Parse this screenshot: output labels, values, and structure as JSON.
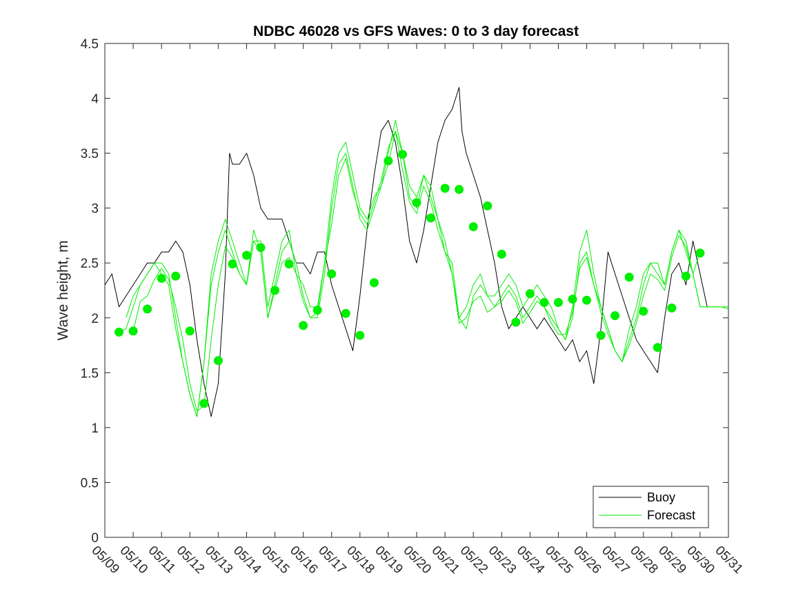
{
  "chart_data": {
    "type": "line",
    "title": "NDBC 46028 vs GFS Waves: 0 to 3 day forecast",
    "xlabel": "",
    "ylabel": "Wave height, m",
    "ylim": [
      0,
      4.5
    ],
    "yticks": [
      "0",
      "0.5",
      "1",
      "1.5",
      "2",
      "2.5",
      "3",
      "3.5",
      "4",
      "4.5"
    ],
    "xlim": [
      9,
      31
    ],
    "xticks": [
      "05/09",
      "05/10",
      "05/11",
      "05/12",
      "05/13",
      "05/14",
      "05/15",
      "05/16",
      "05/17",
      "05/18",
      "05/19",
      "05/20",
      "05/21",
      "05/22",
      "05/23",
      "05/24",
      "05/25",
      "05/26",
      "05/27",
      "05/28",
      "05/29",
      "05/30",
      "05/31"
    ],
    "grid": false,
    "legend_position": "bottom-right",
    "colors": {
      "buoy": "#000000",
      "forecast": "#00ee00"
    },
    "legend": [
      {
        "label": "Buoy",
        "color": "#000000"
      },
      {
        "label": "Forecast",
        "color": "#00ee00"
      }
    ],
    "series": [
      {
        "name": "Buoy",
        "x": [
          9.0,
          9.25,
          9.5,
          9.75,
          10.0,
          10.25,
          10.5,
          10.75,
          11.0,
          11.25,
          11.5,
          11.75,
          12.0,
          12.25,
          12.5,
          12.75,
          13.0,
          13.25,
          13.4,
          13.5,
          13.75,
          14.0,
          14.25,
          14.5,
          14.75,
          15.0,
          15.25,
          15.5,
          15.75,
          16.0,
          16.25,
          16.5,
          16.75,
          17.0,
          17.25,
          17.5,
          17.75,
          18.0,
          18.25,
          18.5,
          18.75,
          19.0,
          19.25,
          19.5,
          19.75,
          20.0,
          20.25,
          20.5,
          20.75,
          21.0,
          21.25,
          21.5,
          21.6,
          21.75,
          22.0,
          22.25,
          22.5,
          22.75,
          23.0,
          23.25,
          23.5,
          23.75,
          24.0,
          24.25,
          24.5,
          24.75,
          25.0,
          25.25,
          25.5,
          25.75,
          26.0,
          26.25,
          26.5,
          26.75,
          27.0,
          27.25,
          27.5,
          27.75,
          28.0,
          28.25,
          28.5,
          28.75,
          29.0,
          29.25,
          29.5,
          29.75,
          30.0,
          30.25
        ],
        "values": [
          2.3,
          2.4,
          2.1,
          2.2,
          2.3,
          2.4,
          2.5,
          2.5,
          2.6,
          2.6,
          2.7,
          2.6,
          2.3,
          1.8,
          1.4,
          1.1,
          1.4,
          2.4,
          3.5,
          3.4,
          3.4,
          3.5,
          3.3,
          3.0,
          2.9,
          2.9,
          2.9,
          2.7,
          2.5,
          2.5,
          2.4,
          2.6,
          2.6,
          2.3,
          2.1,
          1.9,
          1.7,
          2.2,
          2.8,
          3.3,
          3.7,
          3.8,
          3.6,
          3.2,
          2.7,
          2.5,
          2.8,
          3.2,
          3.6,
          3.8,
          3.9,
          4.1,
          3.7,
          3.5,
          3.3,
          3.1,
          2.8,
          2.5,
          2.1,
          1.9,
          2.0,
          2.1,
          2.0,
          1.9,
          2.0,
          1.9,
          1.8,
          1.7,
          1.8,
          1.6,
          1.7,
          1.4,
          1.9,
          2.6,
          2.4,
          2.2,
          2.0,
          1.8,
          1.7,
          1.6,
          1.5,
          2.0,
          2.4,
          2.5,
          2.3,
          2.7,
          2.4,
          2.1
        ]
      },
      {
        "name": "Forecast",
        "x": [
          9.75,
          10.0,
          10.25,
          10.5,
          10.75,
          11.0,
          11.25,
          11.5,
          11.75,
          12.0,
          12.25,
          12.5,
          12.75,
          13.0,
          13.25,
          13.5,
          13.75,
          14.0,
          14.25,
          14.5,
          14.75,
          15.0,
          15.25,
          15.5,
          15.75,
          16.0,
          16.25,
          16.5,
          16.75,
          17.0,
          17.25,
          17.5,
          17.75,
          18.0,
          18.25,
          18.5,
          18.75,
          19.0,
          19.25,
          19.5,
          19.75,
          20.0,
          20.25,
          20.5,
          20.75,
          21.0,
          21.25,
          21.5,
          21.75,
          22.0,
          22.25,
          22.5,
          22.75,
          23.0,
          23.25,
          23.5,
          23.75,
          24.0,
          24.25,
          24.5,
          24.75,
          25.0,
          25.25,
          25.5,
          25.75,
          26.0,
          26.25,
          26.5,
          26.75,
          27.0,
          27.25,
          27.5,
          27.75,
          28.0,
          28.25,
          28.5,
          28.75,
          29.0,
          29.25,
          29.5,
          29.75,
          30.0,
          30.25,
          30.5,
          30.75,
          31.0
        ],
        "values": [
          2.0,
          2.2,
          2.3,
          2.4,
          2.5,
          2.4,
          2.3,
          1.9,
          1.6,
          1.3,
          1.1,
          1.6,
          2.3,
          2.6,
          2.8,
          2.6,
          2.4,
          2.3,
          2.7,
          2.6,
          2.0,
          2.3,
          2.6,
          2.7,
          2.5,
          2.2,
          2.0,
          2.0,
          2.4,
          3.0,
          3.4,
          3.5,
          3.2,
          2.9,
          2.8,
          3.0,
          3.2,
          3.4,
          3.7,
          3.5,
          3.1,
          3.0,
          3.3,
          3.1,
          2.9,
          2.7,
          2.4,
          2.0,
          1.9,
          2.2,
          2.3,
          2.2,
          2.1,
          2.2,
          2.3,
          2.2,
          2.0,
          2.1,
          2.2,
          2.1,
          2.0,
          1.9,
          1.8,
          2.0,
          2.5,
          2.6,
          2.3,
          2.1,
          1.9,
          1.7,
          1.6,
          1.8,
          2.0,
          2.3,
          2.5,
          2.4,
          2.3,
          2.6,
          2.8,
          2.7,
          2.4,
          2.1,
          2.1,
          2.1,
          2.1,
          2.1
        ]
      },
      {
        "name": "Forecast",
        "x": [
          9.5,
          9.75,
          10.0,
          10.25,
          10.5,
          10.75,
          11.0,
          11.25,
          11.5,
          11.75,
          12.0,
          12.25,
          12.5,
          12.75,
          13.0,
          13.25,
          13.5,
          13.75,
          14.0,
          14.25,
          14.5,
          14.75,
          15.0,
          15.25,
          15.5,
          15.75,
          16.0,
          16.25,
          16.5,
          16.75,
          17.0,
          17.25,
          17.5,
          17.75,
          18.0,
          18.25,
          18.5,
          18.75,
          19.0,
          19.25,
          19.5,
          19.75,
          20.0,
          20.25,
          20.5,
          20.75,
          21.0,
          21.25,
          21.5,
          21.75,
          22.0,
          22.25,
          22.5,
          22.75,
          23.0,
          23.25,
          23.5,
          23.75,
          24.0,
          24.25,
          24.5,
          24.75,
          25.0,
          25.25,
          25.5,
          25.75,
          26.0,
          26.25,
          26.5,
          26.75,
          27.0,
          27.25,
          27.5,
          27.75,
          28.0,
          28.25,
          28.5,
          28.75,
          29.0,
          29.25,
          29.5,
          29.75,
          30.0,
          30.25,
          30.5,
          30.75,
          31.0
        ],
        "values": [
          1.87,
          1.9,
          2.1,
          2.3,
          2.4,
          2.5,
          2.5,
          2.4,
          2.0,
          1.6,
          1.3,
          1.1,
          1.6,
          2.4,
          2.7,
          2.9,
          2.7,
          2.5,
          2.3,
          2.7,
          2.7,
          2.1,
          2.4,
          2.7,
          2.8,
          2.4,
          2.3,
          2.1,
          2.1,
          2.5,
          3.1,
          3.5,
          3.6,
          3.3,
          3.0,
          2.9,
          3.1,
          3.2,
          3.5,
          3.8,
          3.5,
          3.2,
          3.1,
          3.3,
          3.2,
          2.9,
          2.6,
          2.5,
          2.0,
          2.1,
          2.3,
          2.4,
          2.2,
          2.2,
          2.3,
          2.4,
          2.3,
          2.1,
          2.2,
          2.3,
          2.2,
          2.1,
          1.9,
          1.8,
          2.1,
          2.6,
          2.8,
          2.4,
          2.1,
          1.9,
          1.7,
          1.6,
          1.9,
          2.1,
          2.4,
          2.5,
          2.5,
          2.3,
          2.6,
          2.8,
          2.6,
          2.4,
          2.1,
          2.1,
          2.1,
          2.1,
          2.08
        ]
      },
      {
        "name": "Forecast",
        "x": [
          10.0,
          10.25,
          10.5,
          10.75,
          11.0,
          11.25,
          11.5,
          11.75,
          12.0,
          12.25,
          12.5,
          12.75,
          13.0,
          13.25,
          13.5,
          13.75,
          14.0,
          14.25,
          14.5,
          14.75,
          15.0,
          15.25,
          15.5,
          15.75,
          16.0,
          16.25,
          16.5,
          16.75,
          17.0,
          17.25,
          17.5,
          17.75,
          18.0,
          18.25,
          18.5,
          18.75,
          19.0,
          19.25,
          19.5,
          19.75,
          20.0,
          20.25,
          20.5,
          20.75,
          21.0,
          21.25,
          21.5,
          21.75,
          22.0,
          22.25,
          22.5,
          22.75,
          23.0,
          23.25,
          23.5,
          23.75,
          24.0,
          24.25,
          24.5,
          24.75,
          25.0,
          25.25,
          25.5,
          25.75,
          26.0,
          26.25,
          26.5,
          26.75,
          27.0,
          27.25,
          27.5,
          27.75,
          28.0,
          28.25,
          28.5,
          28.75,
          29.0,
          29.25,
          29.5,
          29.75,
          30.0
        ],
        "values": [
          1.88,
          2.15,
          2.2,
          2.35,
          2.45,
          2.35,
          2.1,
          1.8,
          1.4,
          1.15,
          1.2,
          1.8,
          2.3,
          2.65,
          2.55,
          2.4,
          2.3,
          2.8,
          2.6,
          2.0,
          2.25,
          2.5,
          2.55,
          2.4,
          2.15,
          2.0,
          2.05,
          2.5,
          2.85,
          3.3,
          3.45,
          3.15,
          2.95,
          2.85,
          3.05,
          3.25,
          3.55,
          3.7,
          3.35,
          3.05,
          2.95,
          3.2,
          3.05,
          2.8,
          2.6,
          2.4,
          1.95,
          2.0,
          2.15,
          2.2,
          2.05,
          2.1,
          2.15,
          2.25,
          2.15,
          1.95,
          2.05,
          2.15,
          2.1,
          1.95,
          1.85,
          1.85,
          2.05,
          2.45,
          2.55,
          2.3,
          2.05,
          1.85,
          1.7,
          1.6,
          1.75,
          1.95,
          2.2,
          2.4,
          2.35,
          2.25,
          2.55,
          2.75,
          2.65,
          2.4,
          2.6
        ]
      }
    ],
    "markers": {
      "name": "Forecast",
      "x": [
        9.5,
        10.0,
        10.5,
        11.0,
        11.5,
        12.0,
        12.5,
        13.0,
        13.5,
        14.0,
        14.5,
        15.0,
        15.5,
        16.0,
        16.5,
        17.0,
        17.5,
        18.0,
        18.5,
        19.0,
        19.5,
        20.0,
        20.5,
        21.0,
        21.5,
        22.0,
        22.5,
        23.0,
        23.5,
        24.0,
        24.5,
        25.0,
        25.5,
        26.0,
        26.5,
        27.0,
        27.5,
        28.0,
        28.5,
        29.0,
        29.5,
        30.0
      ],
      "values": [
        1.87,
        1.88,
        2.08,
        2.36,
        2.38,
        1.88,
        1.22,
        1.61,
        2.49,
        2.57,
        2.64,
        2.25,
        2.49,
        1.93,
        2.07,
        2.4,
        2.04,
        1.84,
        2.32,
        3.43,
        3.49,
        3.05,
        2.91,
        3.18,
        3.17,
        2.83,
        3.02,
        2.58,
        1.96,
        2.22,
        2.14,
        2.14,
        2.17,
        2.16,
        1.84,
        2.02,
        2.37,
        2.06,
        1.73,
        2.09,
        2.38,
        2.59
      ]
    }
  }
}
